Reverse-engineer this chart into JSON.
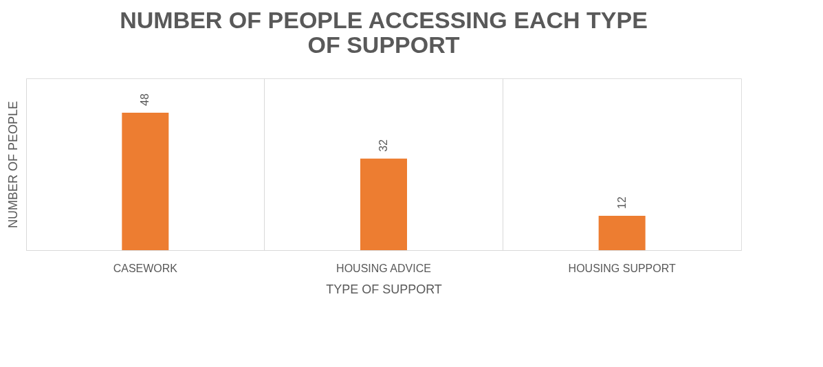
{
  "chart_data": {
    "type": "bar",
    "title": "NUMBER OF PEOPLE ACCESSING EACH TYPE OF SUPPORT",
    "xlabel": "TYPE OF SUPPORT",
    "ylabel": "NUMBER OF PEOPLE",
    "categories": [
      "CASEWORK",
      "HOUSING ADVICE",
      "HOUSING SUPPORT"
    ],
    "values": [
      48,
      32,
      12
    ],
    "color": "#ed7d31",
    "ylim": [
      0,
      60
    ],
    "data_labels": true,
    "grid": "x"
  }
}
